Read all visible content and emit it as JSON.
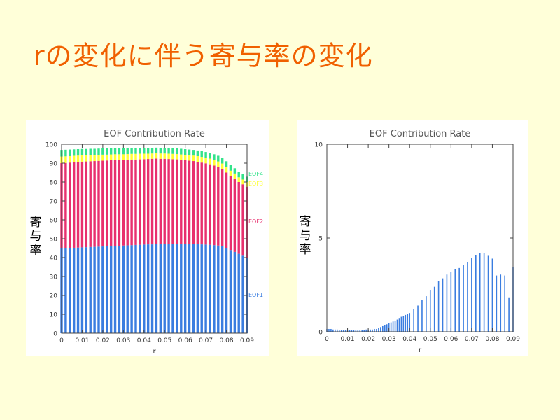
{
  "slide": {
    "title": "rの変化に伴う寄与率の変化"
  },
  "colors": {
    "title": "#f06000",
    "eof1": "#3a7de0",
    "eof2": "#e8306e",
    "eof3": "#ffff33",
    "eof4": "#33e38a"
  },
  "chart_data": [
    {
      "type": "bar",
      "stacked": true,
      "title": "EOF Contribution Rate",
      "xlabel": "r",
      "ylabel": "寄与率",
      "xlim": [
        0,
        0.09
      ],
      "ylim": [
        0,
        100
      ],
      "xticks": [
        "0",
        "0.01",
        "0.02",
        "0.03",
        "0.04",
        "0.05",
        "0.06",
        "0.07",
        "0.08",
        "0.09"
      ],
      "yticks": [
        "0",
        "10",
        "20",
        "30",
        "40",
        "50",
        "60",
        "70",
        "80",
        "90",
        "100"
      ],
      "x": [
        0,
        0.002,
        0.004,
        0.006,
        0.008,
        0.01,
        0.012,
        0.014,
        0.016,
        0.018,
        0.02,
        0.022,
        0.024,
        0.026,
        0.028,
        0.03,
        0.032,
        0.034,
        0.036,
        0.038,
        0.04,
        0.042,
        0.044,
        0.046,
        0.048,
        0.05,
        0.052,
        0.054,
        0.056,
        0.058,
        0.06,
        0.062,
        0.064,
        0.066,
        0.068,
        0.07,
        0.072,
        0.074,
        0.076,
        0.078,
        0.08,
        0.082,
        0.084,
        0.086,
        0.088,
        0.09
      ],
      "series": [
        {
          "name": "EOF1",
          "values": [
            45.0,
            45.0,
            45.1,
            45.2,
            45.3,
            45.4,
            45.5,
            45.6,
            45.7,
            45.8,
            45.9,
            46.0,
            46.1,
            46.2,
            46.3,
            46.4,
            46.5,
            46.6,
            46.7,
            46.8,
            46.9,
            47.0,
            47.0,
            47.1,
            47.1,
            47.2,
            47.2,
            47.3,
            47.3,
            47.3,
            47.3,
            47.2,
            47.2,
            47.1,
            47.0,
            46.9,
            46.8,
            46.6,
            46.4,
            46.0,
            45.0,
            44.0,
            43.0,
            42.0,
            41.0,
            40.0
          ]
        },
        {
          "name": "EOF2",
          "values": [
            45.0,
            45.1,
            45.2,
            45.3,
            45.3,
            45.4,
            45.4,
            45.4,
            45.4,
            45.4,
            45.4,
            45.4,
            45.4,
            45.4,
            45.3,
            45.3,
            45.3,
            45.3,
            45.2,
            45.2,
            45.2,
            45.2,
            45.3,
            45.3,
            45.2,
            45.1,
            45.0,
            44.8,
            44.7,
            44.5,
            44.3,
            44.1,
            43.9,
            43.6,
            43.3,
            43.0,
            42.6,
            42.1,
            41.5,
            40.8,
            40.0,
            39.0,
            38.5,
            38.0,
            37.8,
            37.5
          ]
        },
        {
          "name": "EOF3",
          "values": [
            3.5,
            3.5,
            3.4,
            3.4,
            3.4,
            3.3,
            3.3,
            3.3,
            3.2,
            3.2,
            3.2,
            3.1,
            3.1,
            3.1,
            3.1,
            3.0,
            3.0,
            3.0,
            3.0,
            3.0,
            2.9,
            2.8,
            2.8,
            2.8,
            2.8,
            2.8,
            2.8,
            2.8,
            2.8,
            2.8,
            2.8,
            2.9,
            2.9,
            3.0,
            3.0,
            3.0,
            3.0,
            3.0,
            3.0,
            3.0,
            3.0,
            3.0,
            3.0,
            2.5,
            2.5,
            2.5
          ]
        },
        {
          "name": "EOF4",
          "values": [
            3.5,
            3.5,
            3.5,
            3.4,
            3.4,
            3.4,
            3.3,
            3.3,
            3.3,
            3.3,
            3.3,
            3.3,
            3.3,
            3.2,
            3.2,
            3.2,
            3.2,
            3.1,
            3.1,
            3.0,
            3.0,
            3.0,
            3.0,
            3.0,
            3.0,
            3.0,
            3.0,
            3.0,
            3.0,
            3.0,
            3.0,
            3.0,
            3.0,
            3.0,
            3.0,
            3.0,
            3.0,
            3.0,
            3.0,
            3.0,
            3.0,
            3.0,
            2.8,
            2.8,
            2.8,
            2.8
          ]
        }
      ],
      "labels": [
        "EOF1",
        "EOF2",
        "EOF3",
        "EOF4"
      ]
    },
    {
      "type": "bar",
      "title": "EOF Contribution Rate",
      "xlabel": "r",
      "ylabel": "寄与率",
      "xlim": [
        0,
        0.09
      ],
      "ylim": [
        0,
        10
      ],
      "xticks": [
        "0",
        "0.01",
        "0.02",
        "0.03",
        "0.04",
        "0.05",
        "0.06",
        "0.07",
        "0.08",
        "0.09"
      ],
      "yticks": [
        "0",
        "5",
        "10"
      ],
      "x": [
        0,
        0.001,
        0.002,
        0.003,
        0.004,
        0.005,
        0.006,
        0.007,
        0.008,
        0.009,
        0.01,
        0.011,
        0.012,
        0.013,
        0.014,
        0.015,
        0.016,
        0.017,
        0.018,
        0.019,
        0.02,
        0.021,
        0.022,
        0.023,
        0.024,
        0.025,
        0.026,
        0.027,
        0.028,
        0.029,
        0.03,
        0.031,
        0.032,
        0.033,
        0.034,
        0.035,
        0.036,
        0.037,
        0.038,
        0.039,
        0.04,
        0.042,
        0.044,
        0.046,
        0.048,
        0.05,
        0.052,
        0.054,
        0.056,
        0.058,
        0.06,
        0.062,
        0.064,
        0.066,
        0.068,
        0.07,
        0.072,
        0.074,
        0.076,
        0.078,
        0.08,
        0.082,
        0.084,
        0.086,
        0.088,
        0.09
      ],
      "values": [
        0.15,
        0.15,
        0.15,
        0.12,
        0.12,
        0.12,
        0.1,
        0.1,
        0.1,
        0.1,
        0.1,
        0.1,
        0.1,
        0.1,
        0.1,
        0.1,
        0.1,
        0.1,
        0.1,
        0.12,
        0.12,
        0.12,
        0.12,
        0.15,
        0.15,
        0.2,
        0.25,
        0.3,
        0.35,
        0.4,
        0.45,
        0.5,
        0.55,
        0.6,
        0.65,
        0.7,
        0.8,
        0.85,
        0.9,
        0.95,
        1.0,
        1.2,
        1.4,
        1.7,
        1.9,
        2.2,
        2.4,
        2.7,
        2.85,
        3.05,
        3.2,
        3.35,
        3.4,
        3.55,
        3.7,
        3.95,
        4.1,
        4.2,
        4.2,
        4.05,
        3.9,
        3.0,
        3.05,
        3.0,
        1.8,
        3.45
      ]
    }
  ]
}
